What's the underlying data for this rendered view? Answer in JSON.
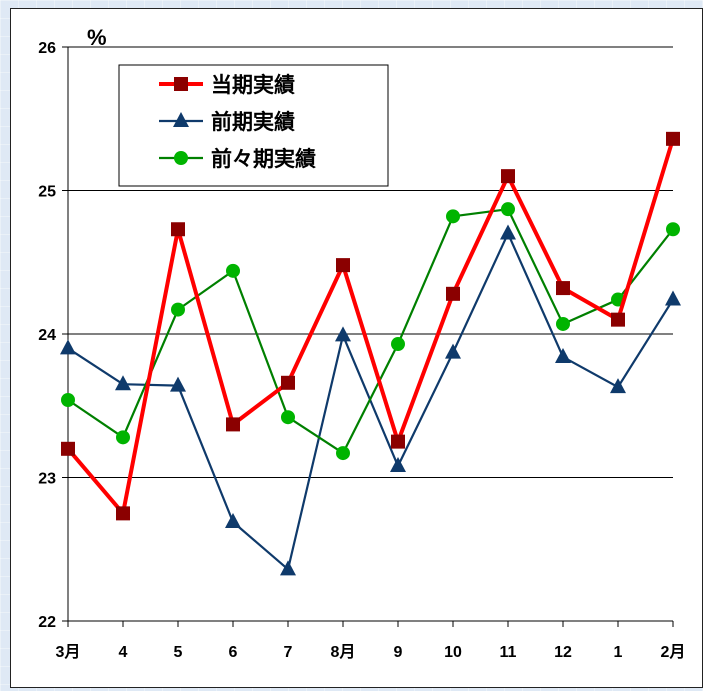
{
  "chart_data": {
    "type": "line",
    "unit_label": "%",
    "categories": [
      "3月",
      "4",
      "5",
      "6",
      "7",
      "8月",
      "9",
      "10",
      "11",
      "12",
      "1",
      "2月"
    ],
    "ylim": [
      22,
      26
    ],
    "yticks": [
      "22",
      "23",
      "24",
      "25",
      "26"
    ],
    "grid": true,
    "legend_position": "top-left",
    "series": [
      {
        "name": "当期実績",
        "color": "#ff0000",
        "marker_color": "#8b0000",
        "marker": "square",
        "values": [
          23.2,
          22.75,
          24.73,
          23.37,
          23.66,
          24.48,
          23.25,
          24.28,
          25.1,
          24.32,
          24.1,
          25.36
        ]
      },
      {
        "name": "前期実績",
        "color": "#0f3a6b",
        "marker_color": "#0f3a6b",
        "marker": "triangle",
        "values": [
          23.9,
          23.65,
          23.64,
          22.69,
          22.36,
          23.99,
          23.08,
          23.87,
          24.7,
          23.84,
          23.63,
          24.24
        ]
      },
      {
        "name": "前々期実績",
        "color": "#008000",
        "marker_color": "#00b400",
        "marker": "circle",
        "values": [
          23.54,
          23.28,
          24.17,
          24.44,
          23.42,
          23.17,
          23.93,
          24.82,
          24.87,
          24.07,
          24.24,
          24.73
        ]
      }
    ]
  }
}
